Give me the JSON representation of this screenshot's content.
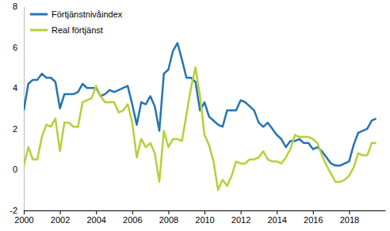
{
  "chart_data": {
    "type": "line",
    "x": [
      2000,
      2000.25,
      2000.5,
      2000.75,
      2001,
      2001.25,
      2001.5,
      2001.75,
      2002,
      2002.25,
      2002.5,
      2002.75,
      2003,
      2003.25,
      2003.5,
      2003.75,
      2004,
      2004.25,
      2004.5,
      2004.75,
      2005,
      2005.25,
      2005.5,
      2005.75,
      2006,
      2006.25,
      2006.5,
      2006.75,
      2007,
      2007.25,
      2007.5,
      2007.75,
      2008,
      2008.25,
      2008.5,
      2008.75,
      2009,
      2009.25,
      2009.5,
      2009.75,
      2010,
      2010.25,
      2010.5,
      2010.75,
      2011,
      2011.25,
      2011.5,
      2011.75,
      2012,
      2012.25,
      2012.5,
      2012.75,
      2013,
      2013.25,
      2013.5,
      2013.75,
      2014,
      2014.25,
      2014.5,
      2014.75,
      2015,
      2015.25,
      2015.5,
      2015.75,
      2016,
      2016.25,
      2016.5,
      2016.75,
      2017,
      2017.25,
      2017.5,
      2017.75,
      2018,
      2018.25,
      2018.5,
      2018.75,
      2019,
      2019.25,
      2019.5
    ],
    "series": [
      {
        "name": "Förtjänstnivåindex",
        "color": "#2474b3",
        "values": [
          2.9,
          4.2,
          4.4,
          4.4,
          4.7,
          4.5,
          4.5,
          4.3,
          3.0,
          3.7,
          3.7,
          3.7,
          3.8,
          4.2,
          4.0,
          4.0,
          4.0,
          3.6,
          3.7,
          3.9,
          3.8,
          3.9,
          4.0,
          4.1,
          3.2,
          2.2,
          3.3,
          3.2,
          3.6,
          3.1,
          1.9,
          4.7,
          4.9,
          5.8,
          6.2,
          5.4,
          4.5,
          4.5,
          4.3,
          2.9,
          3.3,
          2.6,
          2.4,
          2.2,
          2.1,
          2.9,
          2.9,
          2.9,
          3.4,
          3.3,
          3.1,
          2.9,
          2.3,
          2.1,
          2.3,
          2.0,
          1.7,
          1.5,
          1.1,
          1.4,
          1.4,
          1.5,
          1.3,
          1.3,
          1.0,
          1.1,
          0.9,
          0.6,
          0.3,
          0.2,
          0.2,
          0.3,
          0.4,
          1.2,
          1.8,
          1.9,
          2.0,
          2.4,
          2.5
        ]
      },
      {
        "name": "Real förtjänst",
        "color": "#b6d039",
        "values": [
          0.2,
          1.1,
          0.5,
          0.5,
          1.6,
          2.2,
          2.1,
          2.5,
          0.9,
          2.3,
          2.3,
          2.1,
          2.1,
          3.3,
          3.4,
          3.5,
          4.1,
          3.6,
          3.3,
          3.3,
          3.3,
          2.8,
          2.9,
          3.2,
          2.3,
          0.6,
          1.5,
          1.1,
          1.3,
          0.8,
          -0.6,
          1.9,
          1.1,
          1.5,
          1.5,
          1.4,
          2.7,
          4.0,
          5.0,
          3.6,
          1.7,
          1.2,
          0.4,
          -1.0,
          -0.5,
          -0.8,
          -0.3,
          0.4,
          0.3,
          0.3,
          0.5,
          0.5,
          0.6,
          0.9,
          0.5,
          0.4,
          0.4,
          0.3,
          0.6,
          1.0,
          1.7,
          1.6,
          1.6,
          1.6,
          1.5,
          1.3,
          0.7,
          0.2,
          -0.2,
          -0.6,
          -0.6,
          -0.5,
          -0.3,
          0.1,
          0.8,
          0.7,
          0.7,
          1.3,
          1.3
        ]
      }
    ],
    "xlim": [
      2000,
      2020
    ],
    "xticks": [
      2000,
      2002,
      2004,
      2006,
      2008,
      2010,
      2012,
      2014,
      2016,
      2018
    ],
    "ylim": [
      -2,
      8
    ],
    "yticks": [
      -2,
      0,
      2,
      4,
      6,
      8
    ],
    "grid": false,
    "legend": "upper left"
  }
}
